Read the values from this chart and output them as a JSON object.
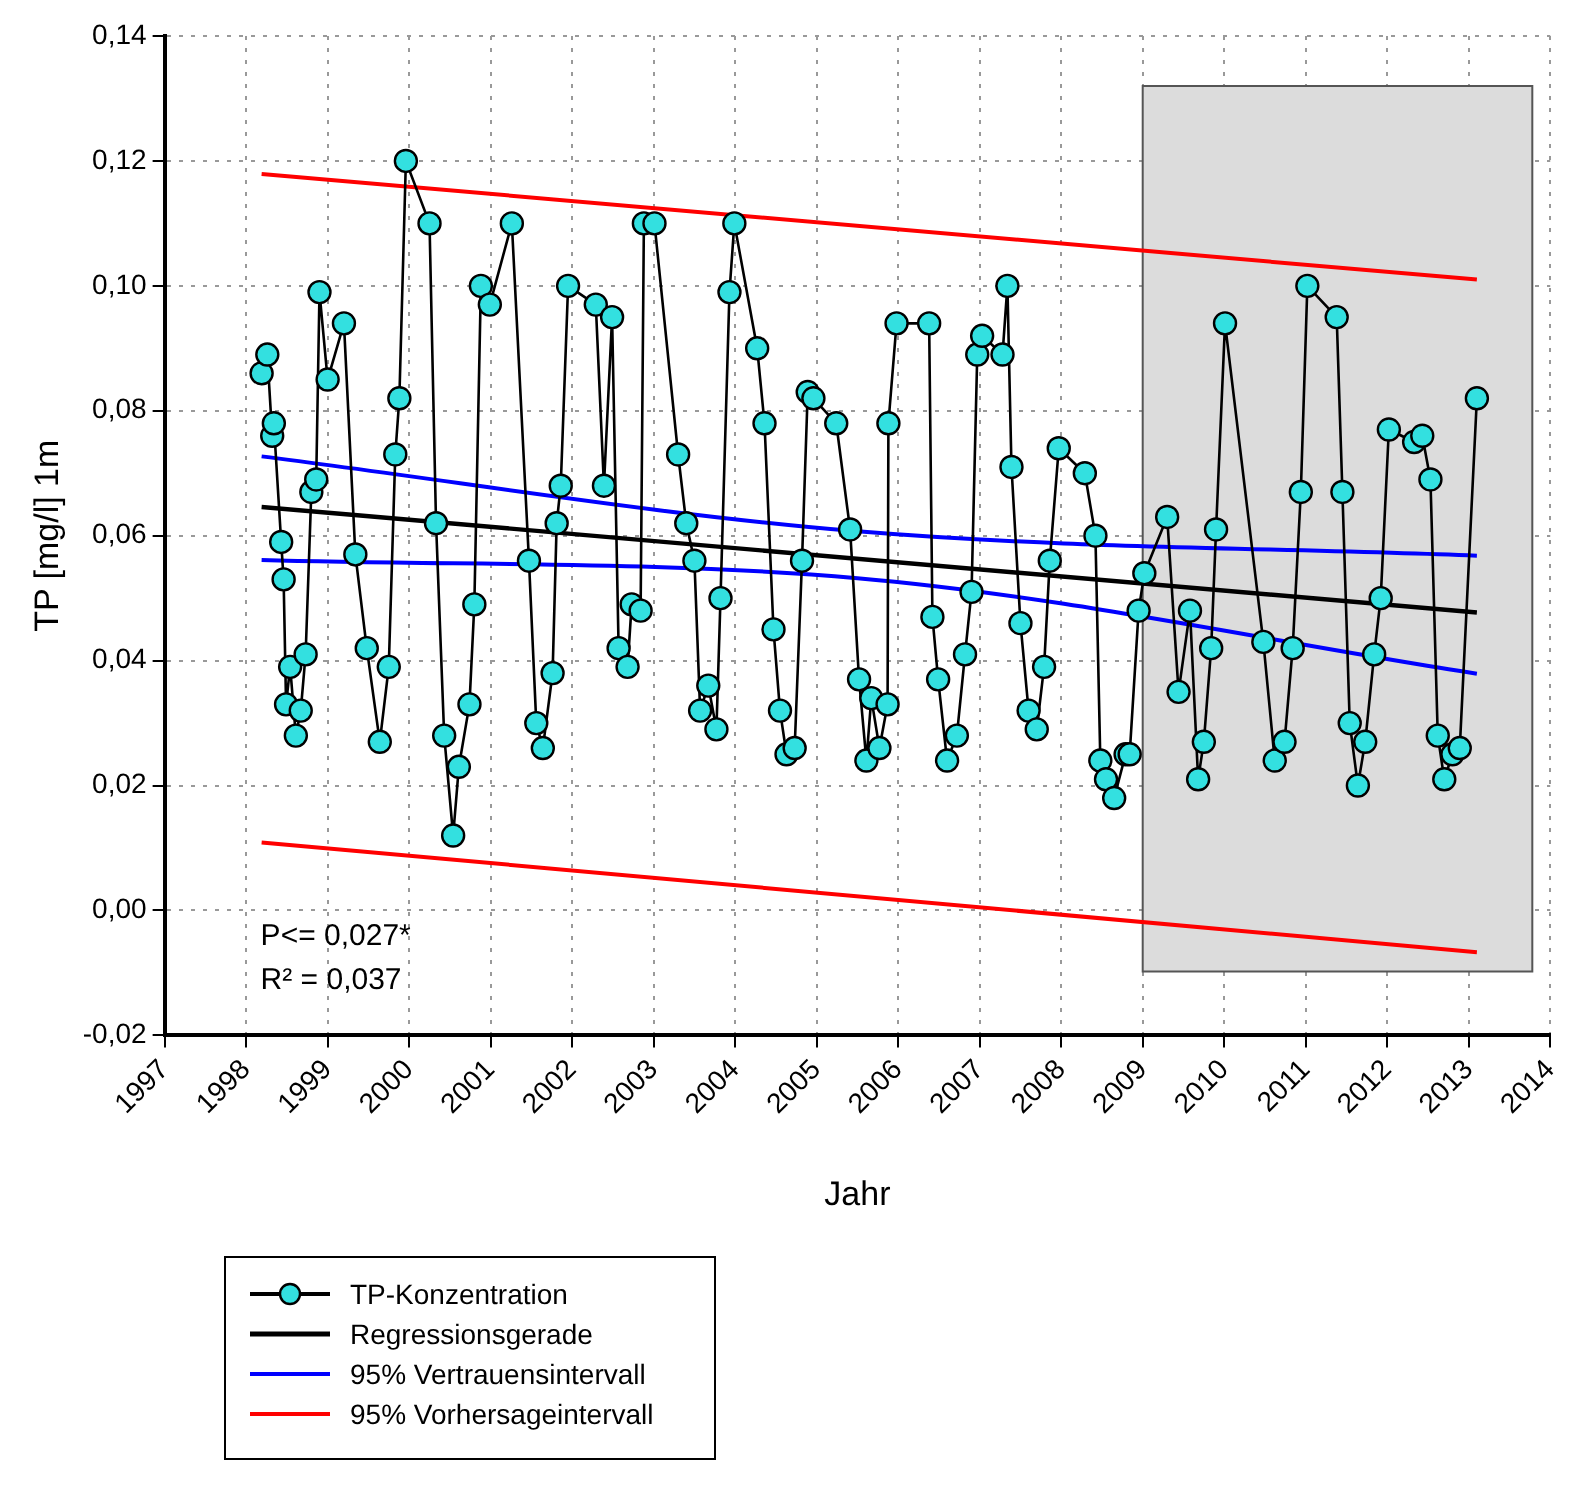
{
  "chart_data": {
    "type": "line",
    "xlabel": "Jahr",
    "ylabel": "TP [mg/l] 1m",
    "xlim": [
      1997,
      2014
    ],
    "xticks": [
      1997,
      1998,
      1999,
      2000,
      2001,
      2002,
      2003,
      2004,
      2005,
      2006,
      2007,
      2008,
      2009,
      2010,
      2011,
      2012,
      2013,
      2014
    ],
    "ylim": [
      -0.02,
      0.14
    ],
    "yticks": [
      {
        "value": -0.02,
        "label": "-0,02"
      },
      {
        "value": 0,
        "label": "0,00"
      },
      {
        "value": 0.02,
        "label": "0,02"
      },
      {
        "value": 0.04,
        "label": "0,04"
      },
      {
        "value": 0.06,
        "label": "0,06"
      },
      {
        "value": 0.08,
        "label": "0,08"
      },
      {
        "value": 0.1,
        "label": "0,10"
      },
      {
        "value": 0.12,
        "label": "0,12"
      },
      {
        "value": 0.14,
        "label": "0,14"
      }
    ],
    "grid": true,
    "legend": "bottom left",
    "bands": [
      {
        "axis": "x",
        "from": 2009.0,
        "to": 2013.78,
        "color": "#dcdcdc"
      }
    ],
    "annotations": [
      "P<= 0,027*",
      "R² = 0,037"
    ],
    "series": [
      {
        "name": "TP-Konzentration",
        "color": "#33e0e0",
        "marker": "circle",
        "x": [
          1998.19,
          1998.26,
          1998.32,
          1998.34,
          1998.43,
          1998.46,
          1998.49,
          1998.54,
          1998.61,
          1998.67,
          1998.73,
          1998.8,
          1998.86,
          1998.9,
          1999.0,
          1999.2,
          1999.34,
          1999.48,
          1999.64,
          1999.75,
          1999.83,
          1999.88,
          1999.96,
          2000.25,
          2000.33,
          2000.43,
          2000.54,
          2000.61,
          2000.74,
          2000.8,
          2000.88,
          2000.99,
          2001.26,
          2001.47,
          2001.56,
          2001.64,
          2001.76,
          2001.81,
          2001.86,
          2001.95,
          2002.29,
          2002.39,
          2002.49,
          2002.57,
          2002.68,
          2002.73,
          2002.84,
          2002.88,
          2003.01,
          2003.3,
          2003.4,
          2003.5,
          2003.57,
          2003.67,
          2003.77,
          2003.82,
          2003.93,
          2003.99,
          2004.27,
          2004.36,
          2004.47,
          2004.55,
          2004.63,
          2004.73,
          2004.82,
          2004.89,
          2004.96,
          2005.24,
          2005.41,
          2005.52,
          2005.61,
          2005.67,
          2005.77,
          2005.87,
          2005.88,
          2005.98,
          2006.38,
          2006.42,
          2006.49,
          2006.6,
          2006.72,
          2006.82,
          2006.9,
          2006.97,
          2007.03,
          2007.28,
          2007.34,
          2007.39,
          2007.5,
          2007.6,
          2007.7,
          2007.79,
          2007.86,
          2007.97,
          2008.29,
          2008.42,
          2008.48,
          2008.55,
          2008.65,
          2008.79,
          2008.84,
          2008.95,
          2009.02,
          2009.3,
          2009.44,
          2009.58,
          2009.68,
          2009.75,
          2009.84,
          2009.9,
          2010.01,
          2010.48,
          2010.62,
          2010.74,
          2010.84,
          2010.94,
          2011.02,
          2011.38,
          2011.45,
          2011.54,
          2011.64,
          2011.73,
          2011.84,
          2011.92,
          2012.02,
          2012.33,
          2012.43,
          2012.53,
          2012.62,
          2012.7,
          2012.8,
          2012.89,
          2013.1
        ],
        "values": [
          0.086,
          0.089,
          0.076,
          0.078,
          0.059,
          0.053,
          0.033,
          0.039,
          0.028,
          0.032,
          0.041,
          0.067,
          0.069,
          0.099,
          0.085,
          0.094,
          0.057,
          0.042,
          0.027,
          0.039,
          0.073,
          0.082,
          0.12,
          0.11,
          0.062,
          0.028,
          0.012,
          0.023,
          0.033,
          0.049,
          0.1,
          0.097,
          0.11,
          0.056,
          0.03,
          0.026,
          0.038,
          0.062,
          0.068,
          0.1,
          0.097,
          0.068,
          0.095,
          0.042,
          0.039,
          0.049,
          0.048,
          0.11,
          0.11,
          0.073,
          0.062,
          0.056,
          0.032,
          0.036,
          0.029,
          0.05,
          0.099,
          0.11,
          0.09,
          0.078,
          0.045,
          0.032,
          0.025,
          0.026,
          0.056,
          0.083,
          0.082,
          0.078,
          0.061,
          0.037,
          0.024,
          0.034,
          0.026,
          0.033,
          0.078,
          0.094,
          0.094,
          0.047,
          0.037,
          0.024,
          0.028,
          0.041,
          0.051,
          0.089,
          0.092,
          0.089,
          0.1,
          0.071,
          0.046,
          0.032,
          0.029,
          0.039,
          0.056,
          0.074,
          0.07,
          0.06,
          0.024,
          0.021,
          0.018,
          0.025,
          0.025,
          0.048,
          0.054,
          0.063,
          0.035,
          0.048,
          0.021,
          0.027,
          0.042,
          0.061,
          0.094,
          0.043,
          0.024,
          0.027,
          0.042,
          0.067,
          0.1,
          0.095,
          0.067,
          0.03,
          0.02,
          0.027,
          0.041,
          0.05,
          0.077,
          0.075,
          0.076,
          0.069,
          0.028,
          0.021,
          0.025,
          0.026,
          0.082
        ]
      },
      {
        "name": "Regressionsgerade",
        "color": "#000000",
        "marker": "none",
        "x": [
          1998.19,
          2013.1
        ],
        "values": [
          0.0646,
          0.0477
        ]
      },
      {
        "name": "95% Vertrauensintervall",
        "color": "#0000ff",
        "marker": "none",
        "x": [
          1998.19,
          2005.5,
          2013.1
        ],
        "values": [
          0.0727,
          0.0607,
          0.0568
        ]
      },
      {
        "name": null,
        "color": "#0000ff",
        "marker": "none",
        "x": [
          1998.19,
          2005.5,
          2013.1
        ],
        "values": [
          0.0561,
          0.0532,
          0.0379
        ]
      },
      {
        "name": "95% Vorhersageintervall",
        "color": "#ff0000",
        "marker": "none",
        "x": [
          1998.19,
          2013.1
        ],
        "values": [
          0.1179,
          0.101
        ]
      },
      {
        "name": null,
        "color": "#ff0000",
        "marker": "none",
        "x": [
          1998.19,
          2013.1
        ],
        "values": [
          0.0109,
          -0.0067
        ]
      }
    ]
  }
}
